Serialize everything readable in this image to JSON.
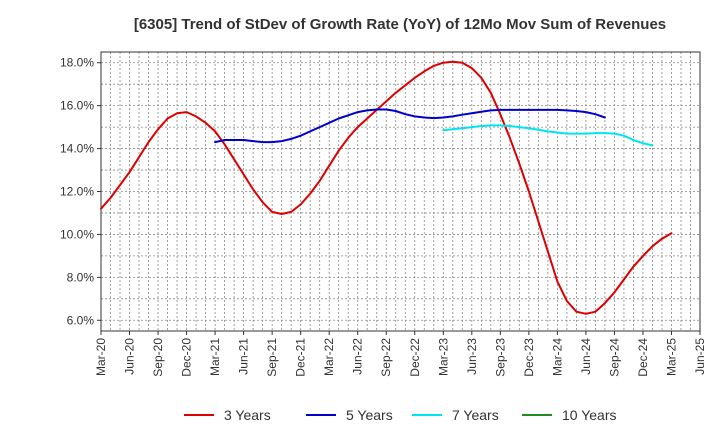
{
  "chart_data": {
    "type": "line",
    "title": "[6305]  Trend of StDev of Growth Rate (YoY) of 12Mo Mov Sum of Revenues",
    "xlabel": "",
    "ylabel": "",
    "ylim": [
      5.5,
      18.5
    ],
    "yticks": [
      6.0,
      8.0,
      10.0,
      12.0,
      14.0,
      16.0,
      18.0
    ],
    "ytick_labels": [
      "6.0%",
      "8.0%",
      "10.0%",
      "12.0%",
      "14.0%",
      "16.0%",
      "18.0%"
    ],
    "x_tick_labels": [
      "Mar-20",
      "Jun-20",
      "Sep-20",
      "Dec-20",
      "Mar-21",
      "Jun-21",
      "Sep-21",
      "Dec-21",
      "Mar-22",
      "Jun-22",
      "Sep-22",
      "Dec-22",
      "Mar-23",
      "Jun-23",
      "Sep-23",
      "Dec-23",
      "Mar-24",
      "Jun-24",
      "Sep-24",
      "Dec-24",
      "Mar-25",
      "Jun-25"
    ],
    "x_start_index": 0,
    "grid": true,
    "legend_position": "bottom",
    "series": [
      {
        "name": "3 Years",
        "color": "#dd0000",
        "start_month": 0,
        "values": [
          11.2,
          11.7,
          12.3,
          12.9,
          13.6,
          14.3,
          14.9,
          15.4,
          15.65,
          15.7,
          15.5,
          15.2,
          14.8,
          14.2,
          13.5,
          12.8,
          12.1,
          11.5,
          11.05,
          10.95,
          11.05,
          11.4,
          11.9,
          12.5,
          13.2,
          13.9,
          14.5,
          15.0,
          15.4,
          15.8,
          16.2,
          16.6,
          16.95,
          17.3,
          17.6,
          17.85,
          18.0,
          18.05,
          18.0,
          17.75,
          17.3,
          16.6,
          15.6,
          14.5,
          13.3,
          12.0,
          10.6,
          9.2,
          7.8,
          6.9,
          6.4,
          6.3,
          6.4,
          6.8,
          7.3,
          7.9,
          8.5,
          9.0,
          9.45,
          9.8,
          10.05
        ]
      },
      {
        "name": "5 Years",
        "color": "#0000cc",
        "start_month": 12,
        "values": [
          14.3,
          14.4,
          14.4,
          14.4,
          14.35,
          14.3,
          14.3,
          14.35,
          14.45,
          14.6,
          14.8,
          15.0,
          15.2,
          15.4,
          15.55,
          15.7,
          15.78,
          15.82,
          15.82,
          15.75,
          15.6,
          15.5,
          15.45,
          15.42,
          15.45,
          15.5,
          15.58,
          15.65,
          15.72,
          15.78,
          15.8,
          15.8,
          15.8,
          15.8,
          15.8,
          15.8,
          15.8,
          15.78,
          15.75,
          15.7,
          15.6,
          15.45
        ]
      },
      {
        "name": "7 Years",
        "color": "#00e5ee",
        "start_month": 36,
        "values": [
          14.85,
          14.9,
          14.95,
          15.0,
          15.05,
          15.08,
          15.08,
          15.05,
          15.0,
          14.95,
          14.88,
          14.8,
          14.75,
          14.7,
          14.7,
          14.7,
          14.72,
          14.72,
          14.7,
          14.6,
          14.4,
          14.25,
          14.15
        ]
      },
      {
        "name": "10 Years",
        "color": "#228b22",
        "start_month": null,
        "values": []
      }
    ]
  }
}
